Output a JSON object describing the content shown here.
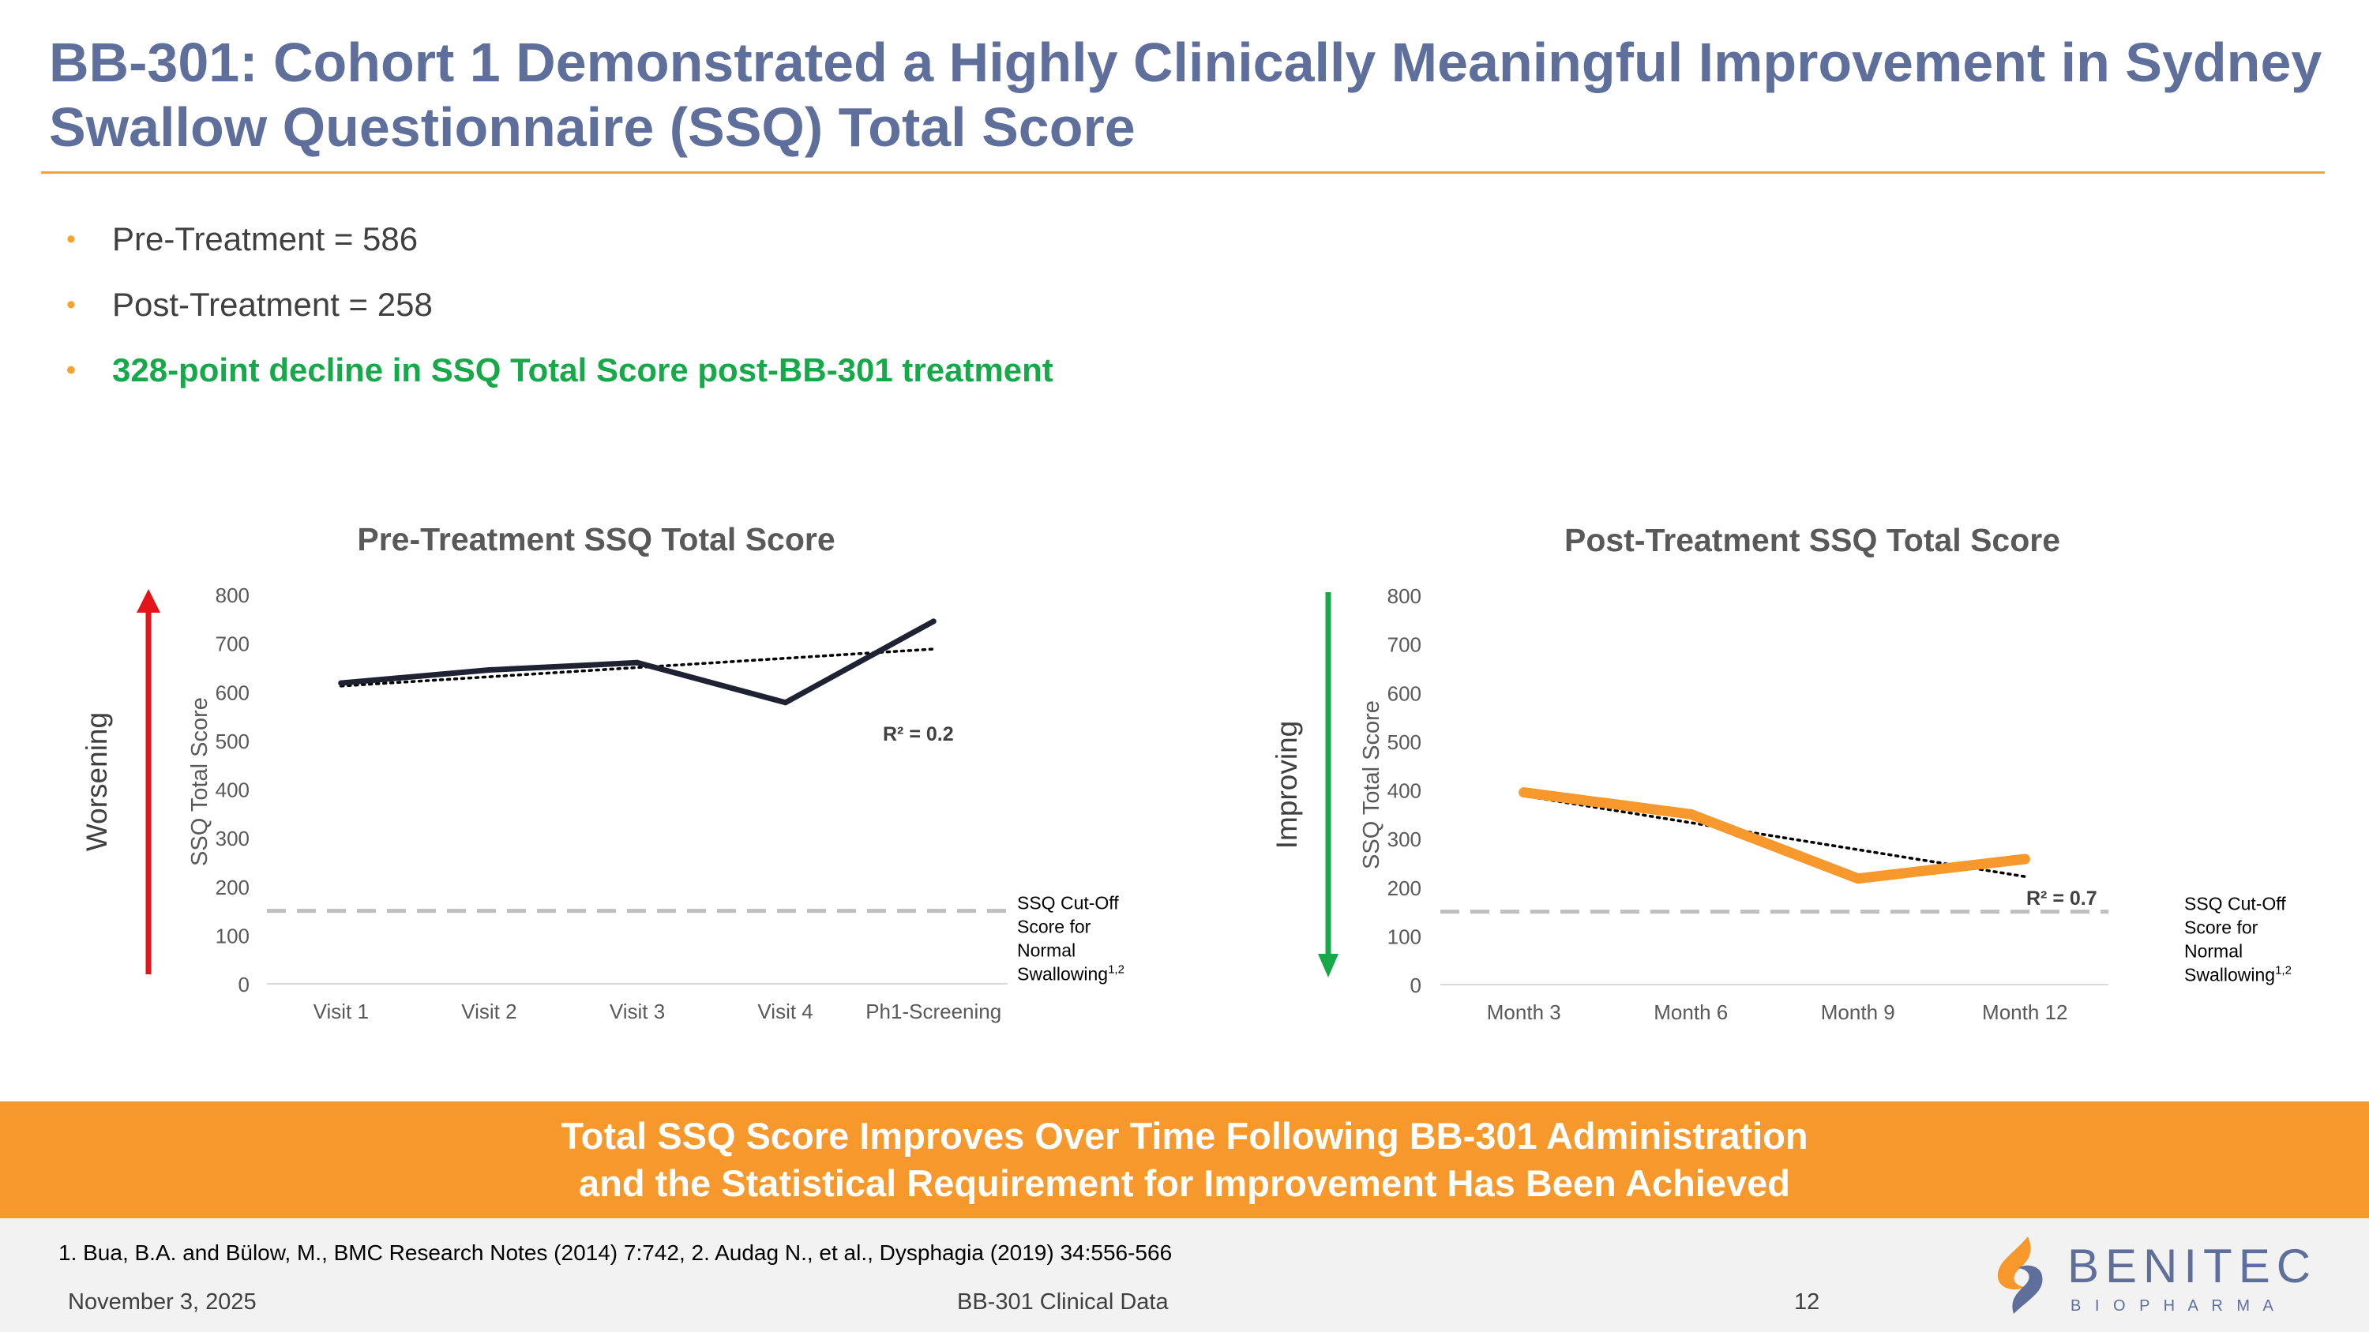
{
  "title": "BB-301: Cohort 1 Demonstrated a Highly Clinically Meaningful Improvement in Sydney Swallow Questionnaire (SSQ) Total Score",
  "bullets": [
    "Pre-Treatment = 586",
    "Post-Treatment = 258",
    "328-point decline in SSQ Total Score post-BB-301 treatment"
  ],
  "bullet_glyph": "•",
  "colors": {
    "title": "#5f6f9b",
    "accent_orange": "#f6982c",
    "green": "#17a84a",
    "red": "#e3151a",
    "pre_line": "#1f2233",
    "post_line": "#f6982c",
    "cutoff": "#bfbfbf"
  },
  "chart_data": [
    {
      "type": "line",
      "title": "Pre-Treatment SSQ Total Score",
      "side_label": "Worsening",
      "ylabel": "SSQ Total Score",
      "xlabel": "",
      "categories": [
        "Visit 1",
        "Visit 2",
        "Visit 3",
        "Visit 4",
        "Ph1-Screening"
      ],
      "series": [
        {
          "name": "SSQ Total Score",
          "values": [
            618,
            645,
            660,
            578,
            745
          ]
        }
      ],
      "trendline": {
        "start": 612,
        "end": 688,
        "r2_label": "R² = 0.2"
      },
      "cutoff": {
        "value": 150,
        "label_lines": [
          "SSQ Cut-Off",
          "Score for",
          "Normal",
          "Swallowing"
        ],
        "superscript": "1,2"
      },
      "ylim": [
        0,
        800
      ],
      "yticks": [
        0,
        100,
        200,
        300,
        400,
        500,
        600,
        700,
        800
      ],
      "grid": false
    },
    {
      "type": "line",
      "title": "Post-Treatment SSQ Total Score",
      "side_label": "Improving",
      "ylabel": "SSQ Total Score",
      "xlabel": "",
      "categories": [
        "Month 3",
        "Month 6",
        "Month 9",
        "Month 12"
      ],
      "series": [
        {
          "name": "SSQ Total Score",
          "values": [
            395,
            350,
            218,
            258
          ]
        }
      ],
      "trendline": {
        "start": 388,
        "end": 222,
        "r2_label": "R² = 0.7"
      },
      "cutoff": {
        "value": 150,
        "label_lines": [
          "SSQ Cut-Off",
          "Score for",
          "Normal",
          "Swallowing"
        ],
        "superscript": "1,2"
      },
      "ylim": [
        0,
        800
      ],
      "yticks": [
        0,
        100,
        200,
        300,
        400,
        500,
        600,
        700,
        800
      ],
      "grid": false
    }
  ],
  "banner": {
    "line1": "Total SSQ Score Improves Over Time Following BB-301 Administration",
    "line2": "and the Statistical Requirement for Improvement Has Been Achieved"
  },
  "footer": {
    "reference": "1. Bua, B.A. and Bülow, M., BMC Research Notes (2014) 7:742, 2. Audag N., et al., Dysphagia (2019) 34:556-566",
    "date": "November 3, 2025",
    "center": "BB-301 Clinical Data",
    "page": "12"
  },
  "logo": {
    "name": "BENITEC",
    "sub": "B I O P H A R M A"
  }
}
